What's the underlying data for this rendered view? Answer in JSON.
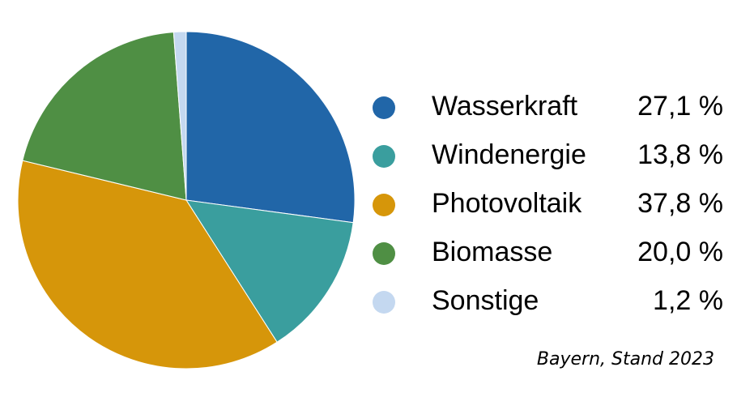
{
  "chart_data": {
    "type": "pie",
    "categories": [
      "Wasserkraft",
      "Windenergie",
      "Photovoltaik",
      "Biomasse",
      "Sonstige"
    ],
    "values": [
      27.1,
      13.8,
      37.8,
      20.0,
      1.2
    ],
    "value_labels": [
      "27,1 %",
      "13,8 %",
      "37,8 %",
      "20,0 %",
      "1,2 %"
    ],
    "colors": [
      "#2166a8",
      "#3a9e9e",
      "#d6960a",
      "#4f8f44",
      "#c4d8f0"
    ],
    "annotation": "Bayern, Stand 2023"
  }
}
